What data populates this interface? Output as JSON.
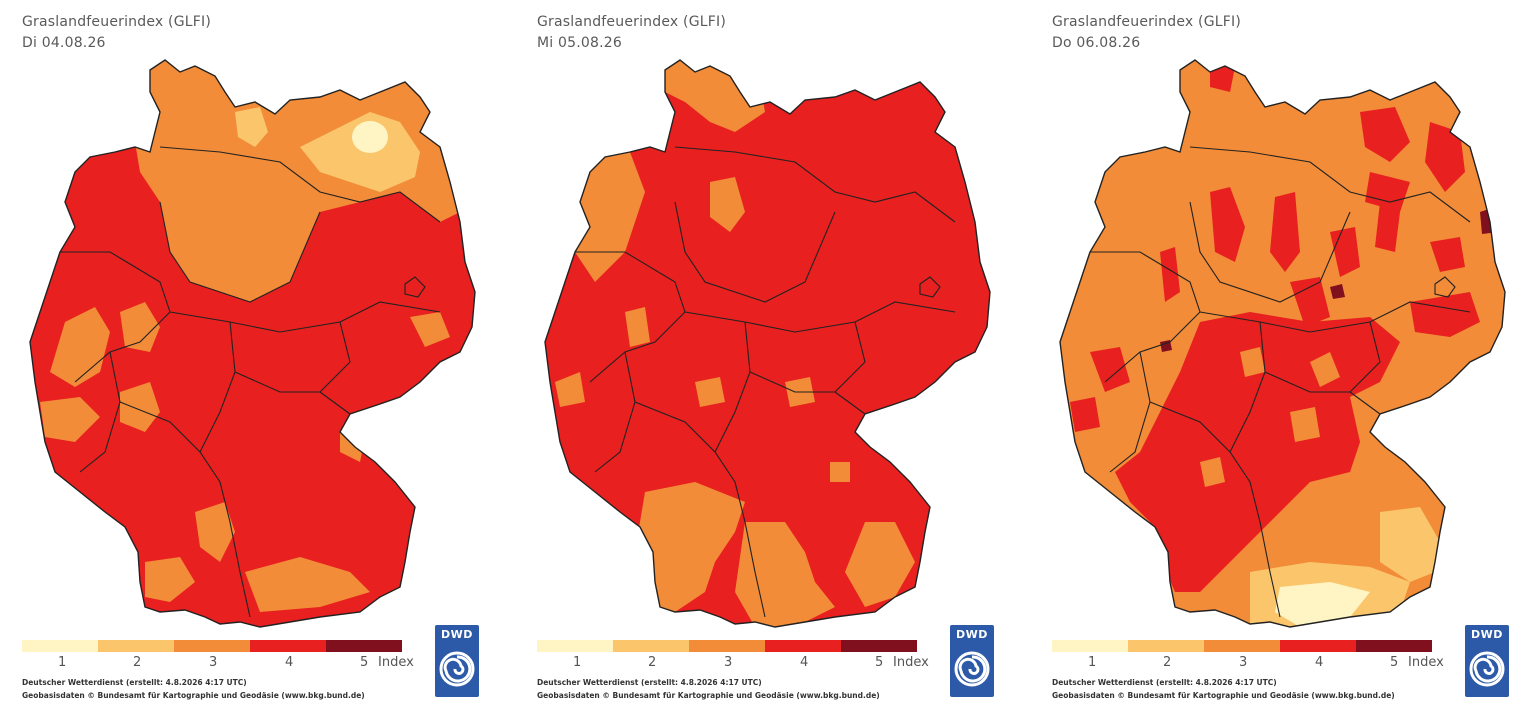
{
  "panels": [
    {
      "title": "Graslandfeuerindex (GLFI)",
      "date": "Di 04.08.26"
    },
    {
      "title": "Graslandfeuerindex (GLFI)",
      "date": "Mi 05.08.26"
    },
    {
      "title": "Graslandfeuerindex (GLFI)",
      "date": "Do 06.08.26"
    }
  ],
  "legend": {
    "colors": [
      "#fff5c4",
      "#fbc66b",
      "#f28c38",
      "#e8201f",
      "#80101d"
    ],
    "ticks": [
      "1",
      "2",
      "3",
      "4",
      "5"
    ],
    "unit": "Index"
  },
  "footer": {
    "line1": "Deutscher Wetterdienst  (erstellt: 4.8.2026  4:17  UTC)",
    "line2": "Geobasisdaten  ©  Bundesamt für Kartographie und Geodäsie  (www.bkg.bund.de)"
  },
  "logo": {
    "text": "DWD",
    "icon": "dwd-swirl-icon"
  },
  "map_colors": {
    "level1": "#fff5c4",
    "level2": "#fbc66b",
    "level3": "#f28c38",
    "level4": "#e8201f",
    "level5": "#80101d",
    "border": "#222222"
  }
}
